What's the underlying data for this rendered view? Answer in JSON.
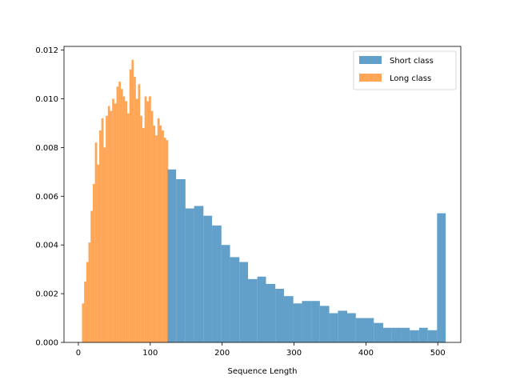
{
  "chart_data": {
    "type": "histogram",
    "title": "",
    "xlabel": "Sequence Length",
    "ylabel": "",
    "xlim": [
      -20,
      532
    ],
    "ylim": [
      0,
      0.01215
    ],
    "xticks": [
      0,
      100,
      200,
      300,
      400,
      500
    ],
    "xtick_labels": [
      "0",
      "100",
      "200",
      "300",
      "400",
      "500"
    ],
    "yticks": [
      0.0,
      0.002,
      0.004,
      0.006,
      0.008,
      0.01,
      0.012
    ],
    "ytick_labels": [
      "0.000",
      "0.002",
      "0.004",
      "0.006",
      "0.008",
      "0.010",
      "0.012"
    ],
    "grid": false,
    "legend_position": "upper right",
    "series": [
      {
        "name": "Short class",
        "color": "#1f77b4",
        "alpha": 0.7,
        "bins": [
          [
            124,
            136,
            0.0071
          ],
          [
            136,
            149,
            0.0067
          ],
          [
            149,
            161,
            0.0055
          ],
          [
            161,
            174,
            0.0056
          ],
          [
            174,
            186,
            0.0052
          ],
          [
            186,
            199,
            0.0048
          ],
          [
            199,
            211,
            0.004
          ],
          [
            211,
            224,
            0.0035
          ],
          [
            224,
            236,
            0.0033
          ],
          [
            236,
            249,
            0.0026
          ],
          [
            249,
            261,
            0.0027
          ],
          [
            261,
            274,
            0.0024
          ],
          [
            274,
            286,
            0.0022
          ],
          [
            286,
            299,
            0.0019
          ],
          [
            299,
            311,
            0.0016
          ],
          [
            311,
            324,
            0.0017
          ],
          [
            324,
            336,
            0.0017
          ],
          [
            336,
            349,
            0.0015
          ],
          [
            349,
            361,
            0.0012
          ],
          [
            361,
            374,
            0.0013
          ],
          [
            374,
            386,
            0.0012
          ],
          [
            386,
            399,
            0.001
          ],
          [
            399,
            411,
            0.001
          ],
          [
            411,
            424,
            0.0008
          ],
          [
            424,
            436,
            0.0006
          ],
          [
            436,
            449,
            0.0006
          ],
          [
            449,
            461,
            0.0006
          ],
          [
            461,
            474,
            0.0005
          ],
          [
            474,
            486,
            0.0006
          ],
          [
            486,
            499,
            0.0005
          ],
          [
            499,
            511,
            0.0053
          ]
        ]
      },
      {
        "name": "Long class",
        "color": "#ff7f0e",
        "alpha": 0.7,
        "bins": [
          [
            5,
            8,
            0.0016
          ],
          [
            8,
            11,
            0.0025
          ],
          [
            11,
            14,
            0.0033
          ],
          [
            14,
            17,
            0.0041
          ],
          [
            17,
            20,
            0.0054
          ],
          [
            20,
            23,
            0.0065
          ],
          [
            23,
            26,
            0.0082
          ],
          [
            26,
            29,
            0.0073
          ],
          [
            29,
            32,
            0.0087
          ],
          [
            32,
            35,
            0.0092
          ],
          [
            35,
            38,
            0.008
          ],
          [
            38,
            41,
            0.0093
          ],
          [
            41,
            44,
            0.0097
          ],
          [
            44,
            47,
            0.0095
          ],
          [
            47,
            50,
            0.01
          ],
          [
            50,
            53,
            0.0098
          ],
          [
            53,
            56,
            0.0105
          ],
          [
            56,
            59,
            0.0107
          ],
          [
            59,
            62,
            0.0104
          ],
          [
            62,
            65,
            0.0101
          ],
          [
            65,
            68,
            0.0099
          ],
          [
            68,
            71,
            0.0094
          ],
          [
            71,
            74,
            0.0112
          ],
          [
            74,
            77,
            0.0116
          ],
          [
            77,
            80,
            0.0109
          ],
          [
            80,
            83,
            0.01
          ],
          [
            83,
            86,
            0.0106
          ],
          [
            86,
            89,
            0.0093
          ],
          [
            89,
            92,
            0.0088
          ],
          [
            92,
            95,
            0.0101
          ],
          [
            95,
            98,
            0.0099
          ],
          [
            98,
            101,
            0.0101
          ],
          [
            101,
            104,
            0.0095
          ],
          [
            104,
            107,
            0.0089
          ],
          [
            107,
            110,
            0.0085
          ],
          [
            110,
            113,
            0.0092
          ],
          [
            113,
            116,
            0.0089
          ],
          [
            116,
            119,
            0.0087
          ],
          [
            119,
            122,
            0.0084
          ],
          [
            122,
            125,
            0.0083
          ]
        ]
      }
    ]
  }
}
